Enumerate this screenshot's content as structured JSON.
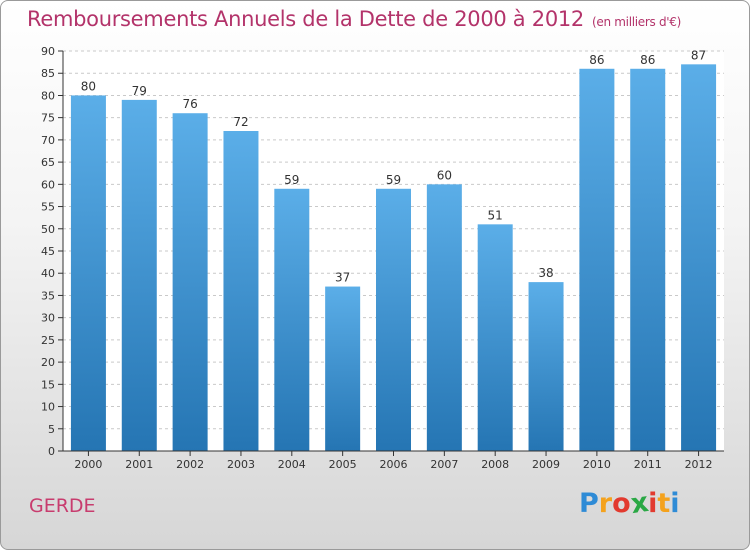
{
  "chart_data": {
    "type": "bar",
    "title": "Remboursements Annuels de la Dette de 2000 à 2012",
    "subtitle": "(en milliers d'€)",
    "categories": [
      "2000",
      "2001",
      "2002",
      "2003",
      "2004",
      "2005",
      "2006",
      "2007",
      "2008",
      "2009",
      "2010",
      "2011",
      "2012"
    ],
    "values": [
      80,
      79,
      76,
      72,
      59,
      37,
      59,
      60,
      51,
      38,
      86,
      86,
      87
    ],
    "ylim": [
      0,
      90
    ],
    "yticks": [
      0,
      5,
      10,
      15,
      20,
      25,
      30,
      35,
      40,
      45,
      50,
      55,
      60,
      65,
      70,
      75,
      80,
      85,
      90
    ],
    "grid": true,
    "legend": "none",
    "bar_color_top": "#5baee8",
    "bar_color_bottom": "#2575b3"
  },
  "footer": {
    "commune": "GERDE",
    "logo_letters": [
      "P",
      "r",
      "o",
      "x",
      "i",
      "t",
      "i"
    ],
    "logo_colors": [
      "#2e8bd6",
      "#f4a21d",
      "#e23a2f",
      "#2aa845",
      "#e23a2f",
      "#f4a21d",
      "#2e8bd6"
    ]
  },
  "colors": {
    "title": "#b3336a",
    "grid": "#c9c9c9",
    "axis": "#333333"
  }
}
